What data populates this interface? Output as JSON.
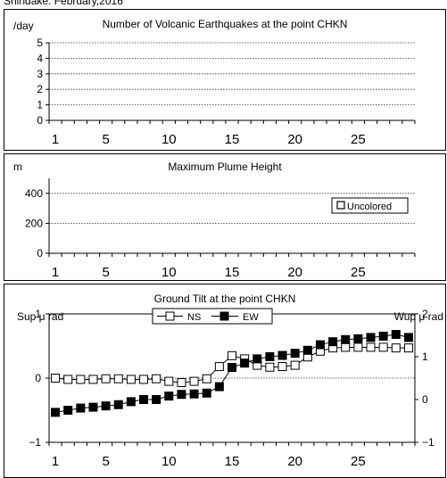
{
  "page_title": "Shindake: February,2016",
  "chart_data": [
    {
      "type": "bar",
      "title": "Number of Volcanic Earthquakes at the point CHKN",
      "ylabel": "/day",
      "ylim": [
        0,
        5
      ],
      "yticks": [
        "0",
        "1",
        "2",
        "3",
        "4",
        "5"
      ],
      "x_range": [
        1,
        29
      ],
      "x_tick_labels": [
        "1",
        "5",
        "10",
        "15",
        "20",
        "25"
      ],
      "grid": true,
      "values": []
    },
    {
      "type": "bar",
      "title": "Maximum Plume Height",
      "ylabel": "m",
      "ylim": [
        0,
        500
      ],
      "yticks": [
        "0",
        "200",
        "400"
      ],
      "x_range": [
        1,
        29
      ],
      "x_tick_labels": [
        "1",
        "5",
        "10",
        "15",
        "20",
        "25"
      ],
      "grid": true,
      "legend": {
        "position": "top-right",
        "entries": [
          "Uncolored"
        ]
      },
      "values": []
    },
    {
      "type": "line",
      "title": "Ground Tilt at the point CHKN",
      "ylabel": "Sup μ rad",
      "ylabel_right": "Wup μ rad",
      "ylim": [
        -1,
        1
      ],
      "ylim_right": [
        -1,
        2
      ],
      "yticks": [
        "1",
        "0",
        "−1"
      ],
      "yticks_right": [
        "2",
        "1",
        "0",
        "−1"
      ],
      "x_range": [
        1,
        29
      ],
      "x_tick_labels": [
        "1",
        "5",
        "10",
        "15",
        "20",
        "25"
      ],
      "legend": {
        "position": "top-center",
        "entries": [
          "NS",
          "EW"
        ]
      },
      "series": [
        {
          "name": "NS",
          "axis": "left",
          "marker": "open-square",
          "x": [
            1,
            2,
            3,
            4,
            5,
            6,
            7,
            8,
            9,
            10,
            11,
            12,
            13,
            14,
            15,
            16,
            17,
            18,
            19,
            20,
            21,
            22,
            23,
            24,
            25,
            26,
            27,
            28,
            29
          ],
          "values": [
            0.0,
            -0.02,
            -0.02,
            -0.02,
            -0.01,
            -0.01,
            -0.02,
            -0.02,
            -0.01,
            -0.05,
            -0.07,
            -0.05,
            -0.01,
            0.18,
            0.35,
            0.3,
            0.2,
            0.17,
            0.18,
            0.2,
            0.33,
            0.42,
            0.47,
            0.48,
            0.48,
            0.48,
            0.48,
            0.47,
            0.47
          ]
        },
        {
          "name": "EW",
          "axis": "right",
          "marker": "filled-square",
          "x": [
            1,
            2,
            3,
            4,
            5,
            6,
            7,
            8,
            9,
            10,
            11,
            12,
            13,
            14,
            15,
            16,
            17,
            18,
            19,
            20,
            21,
            22,
            23,
            24,
            25,
            26,
            27,
            28,
            29
          ],
          "values": [
            -0.3,
            -0.25,
            -0.2,
            -0.18,
            -0.15,
            -0.12,
            -0.05,
            0.0,
            0.0,
            0.08,
            0.12,
            0.13,
            0.15,
            0.3,
            0.75,
            0.85,
            0.95,
            1.0,
            1.03,
            1.08,
            1.15,
            1.28,
            1.35,
            1.4,
            1.42,
            1.45,
            1.48,
            1.52,
            1.45
          ]
        }
      ]
    }
  ]
}
